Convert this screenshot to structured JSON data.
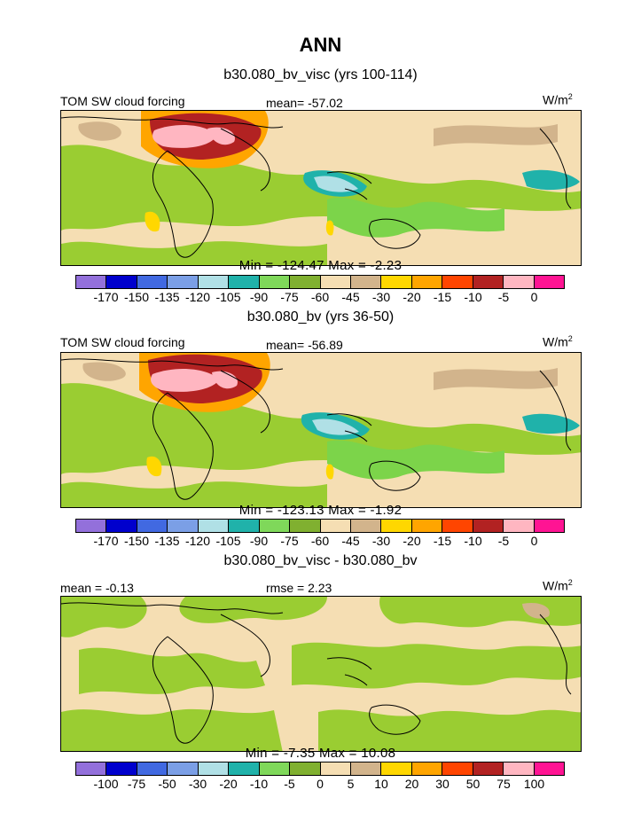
{
  "figure": {
    "title": "ANN"
  },
  "panels": [
    {
      "title": "b30.080_bv_visc (yrs 100-114)",
      "left_label": "TOM SW cloud forcing",
      "center_label": "mean=  -57.02",
      "unit_base": "W/m",
      "unit_sup": "2",
      "minmax": "Min = -124.47  Max =   -2.23",
      "field": "absolute"
    },
    {
      "title": "b30.080_bv (yrs 36-50)",
      "left_label": "TOM SW cloud forcing",
      "center_label": "mean=  -56.89",
      "unit_base": "W/m",
      "unit_sup": "2",
      "minmax": "Min = -123.13  Max =   -1.92",
      "field": "absolute"
    },
    {
      "title": "b30.080_bv_visc - b30.080_bv",
      "left_label": "mean =   -0.13",
      "center_label": "rmse =   2.23",
      "unit_base": "W/m",
      "unit_sup": "2",
      "minmax": "Min =   -7.35  Max =   10.08",
      "field": "difference"
    }
  ],
  "colorbar": {
    "colors": [
      "#9370db",
      "#0000cd",
      "#4169e1",
      "#7b9fe6",
      "#b0e0e6",
      "#20b2aa",
      "#7fd85a",
      "#80b030",
      "#f5deb3",
      "#d2b48c",
      "#ffd700",
      "#ffa500",
      "#ff4500",
      "#b22222",
      "#ffb6c1",
      "#ff1493"
    ],
    "abs_ticks": [
      "-170",
      "-150",
      "-135",
      "-120",
      "-105",
      "-90",
      "-75",
      "-60",
      "-45",
      "-30",
      "-20",
      "-15",
      "-10",
      "-5",
      "0"
    ],
    "diff_ticks": [
      "-100",
      "-75",
      "-50",
      "-30",
      "-20",
      "-10",
      "-5",
      "0",
      "5",
      "10",
      "20",
      "30",
      "50",
      "75",
      "100"
    ]
  }
}
